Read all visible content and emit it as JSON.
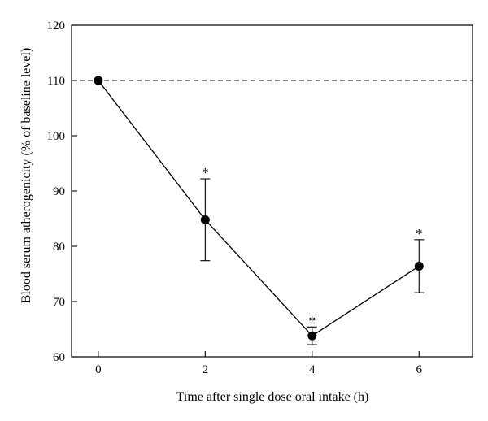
{
  "chart_data": {
    "type": "line",
    "title": "",
    "xlabel": "Time after single dose oral intake (h)",
    "ylabel": "Blood serum atherogenicity (% of baseline level)",
    "xlim": [
      -0.5,
      7.0
    ],
    "ylim": [
      60,
      120
    ],
    "xticks": [
      0,
      2,
      4,
      6
    ],
    "yticks": [
      60,
      70,
      80,
      90,
      100,
      110,
      120
    ],
    "grid": false,
    "legend": "none",
    "reference_line": {
      "y": 110,
      "style": "dashed"
    },
    "series": [
      {
        "x": [
          0,
          2,
          4,
          6
        ],
        "values": [
          110,
          84.8,
          63.8,
          76.4
        ],
        "error": [
          0,
          7.4,
          1.6,
          4.8
        ],
        "annotations": [
          "",
          "*",
          "*",
          "*"
        ]
      }
    ]
  }
}
